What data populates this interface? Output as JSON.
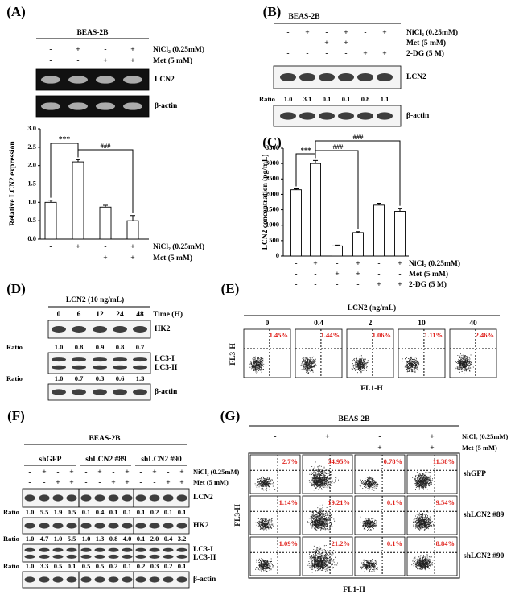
{
  "A": {
    "label": "(A)",
    "cell_line": "BEAS-2B",
    "treatments": [
      {
        "name": "NiCl₂ (0.25mM)",
        "signs": [
          "-",
          "+",
          "-",
          "+"
        ]
      },
      {
        "name": "Met (5 mM)",
        "signs": [
          "-",
          "-",
          "+",
          "+"
        ]
      }
    ],
    "blots": [
      "LCN2",
      "β-actin"
    ],
    "chart": {
      "type": "bar",
      "ylabel": "Relative LCN2 expression",
      "values": [
        1.0,
        2.1,
        0.87,
        0.5
      ],
      "errors": [
        0.06,
        0.06,
        0.05,
        0.14
      ],
      "ylim": [
        0,
        3
      ],
      "yticks": [
        {
          "value": 0,
          "label": "0.0"
        },
        0.5,
        {
          "value": 1,
          "label": "1.0"
        },
        1.5,
        {
          "value": 2,
          "label": "2.0"
        },
        2.5,
        {
          "value": 3,
          "label": "3.0"
        }
      ],
      "annotations": [
        "***",
        "###"
      ]
    }
  },
  "B": {
    "label": "(B)",
    "cell_line": "BEAS-2B",
    "treatments": [
      {
        "name": "NiCl₂ (0.25mM)",
        "signs": [
          "-",
          "+",
          "-",
          "+",
          "-",
          "+"
        ]
      },
      {
        "name": "Met (5 mM)",
        "signs": [
          "-",
          "-",
          "+",
          "+",
          "-",
          "-"
        ]
      },
      {
        "name": "2-DG (5 M)",
        "signs": [
          "-",
          "-",
          "-",
          "-",
          "+",
          "+"
        ]
      }
    ],
    "blots": [
      "LCN2",
      "β-actin"
    ],
    "ratio_label": "Ratio",
    "ratios": [
      "1.0",
      "3.1",
      "0.1",
      "0.1",
      "0.8",
      "1.1"
    ]
  },
  "C": {
    "label": "(C)",
    "treatments": [
      {
        "name": "NiCl₂ (0.25mM)",
        "signs": [
          "-",
          "+",
          "-",
          "+",
          "-",
          "+"
        ]
      },
      {
        "name": "Met (5 mM)",
        "signs": [
          "-",
          "-",
          "+",
          "+",
          "-",
          "-"
        ]
      },
      {
        "name": "2-DG (5 M)",
        "signs": [
          "-",
          "-",
          "-",
          "-",
          "+",
          "+"
        ]
      }
    ],
    "chart": {
      "type": "bar",
      "ylabel": "LCN2 concentration (pg/mL)",
      "values": [
        2150,
        3000,
        330,
        760,
        1650,
        1450
      ],
      "errors": [
        30,
        100,
        25,
        30,
        60,
        100
      ],
      "ylim": [
        0,
        3500
      ],
      "yticks": [
        0,
        500,
        1000,
        1500,
        2000,
        2500,
        3000,
        3500
      ],
      "annotations": [
        "***",
        "###",
        "###"
      ]
    }
  },
  "D": {
    "label": "(D)",
    "treatment": "LCN2 (10 ng/mL)",
    "times": [
      "0",
      "6",
      "12",
      "24",
      "48"
    ],
    "time_label": "Time (H)",
    "blots": [
      "HK2",
      "LC3-I",
      "LC3-II",
      "β-actin"
    ],
    "ratio_label": "Ratio",
    "ratios": [
      [
        "1.0",
        "0.8",
        "0.9",
        "0.8",
        "0.7"
      ],
      [
        "1.0",
        "0.7",
        "0.3",
        "0.6",
        "1.3"
      ]
    ]
  },
  "E": {
    "label": "(E)",
    "treatment": "LCN2 (ng/mL)",
    "doses": [
      "0",
      "0.4",
      "2",
      "10",
      "40"
    ],
    "percents": [
      "1.45%",
      "1.44%",
      "1.06%",
      "1.11%",
      "2.46%"
    ],
    "ylabel": "FL3-H",
    "xlabel": "FL1-H"
  },
  "F": {
    "label": "(F)",
    "cell_line": "BEAS-2B",
    "groups": [
      "shGFP",
      "shLCN2 #89",
      "shLCN2 #90"
    ],
    "treatments": [
      {
        "name": "NiCl₂ (0.25mM)",
        "signs": [
          "-",
          "+",
          "-",
          "+",
          "-",
          "+",
          "-",
          "+",
          "-",
          "+",
          "-",
          "+"
        ]
      },
      {
        "name": "Met (5 mM)",
        "signs": [
          "-",
          "-",
          "+",
          "+",
          "-",
          "-",
          "+",
          "+",
          "-",
          "-",
          "+",
          "+"
        ]
      }
    ],
    "blots": [
      "LCN2",
      "HK2",
      "LC3-I",
      "LC3-II",
      "β-actin"
    ],
    "ratio_label": "Ratio",
    "ratios": [
      [
        "1.0",
        "5.5",
        "1.9",
        "0.5",
        "0.1",
        "0.4",
        "0.1",
        "0.1",
        "0.1",
        "0.2",
        "0.1",
        "0.1"
      ],
      [
        "1.0",
        "4.7",
        "1.0",
        "5.5",
        "1.0",
        "1.3",
        "0.8",
        "4.0",
        "0.1",
        "2.0",
        "0.4",
        "3.2"
      ],
      [
        "1.0",
        "3.3",
        "0.5",
        "0.1",
        "0.5",
        "0.5",
        "0.2",
        "0.1",
        "0.2",
        "0.3",
        "0.2",
        "0.1"
      ]
    ]
  },
  "G": {
    "label": "(G)",
    "cell_line": "BEAS-2B",
    "treatments": [
      {
        "name": "NiCl₂ (0.25mM)",
        "signs": [
          "-",
          "+",
          "-",
          "+"
        ]
      },
      {
        "name": "Met (5 mM)",
        "signs": [
          "-",
          "-",
          "+",
          "+"
        ]
      }
    ],
    "rows": [
      "shGFP",
      "shLCN2 #89",
      "shLCN2 #90"
    ],
    "percents": [
      [
        "2.7%",
        "34.95%",
        "0.78%",
        "11.38%"
      ],
      [
        "1.14%",
        "19.21%",
        "0.1%",
        "9.54%"
      ],
      [
        "1.09%",
        "21.2%",
        "0.1%",
        "8.84%"
      ]
    ],
    "ylabel": "FL3-H",
    "xlabel": "FL1-H"
  }
}
